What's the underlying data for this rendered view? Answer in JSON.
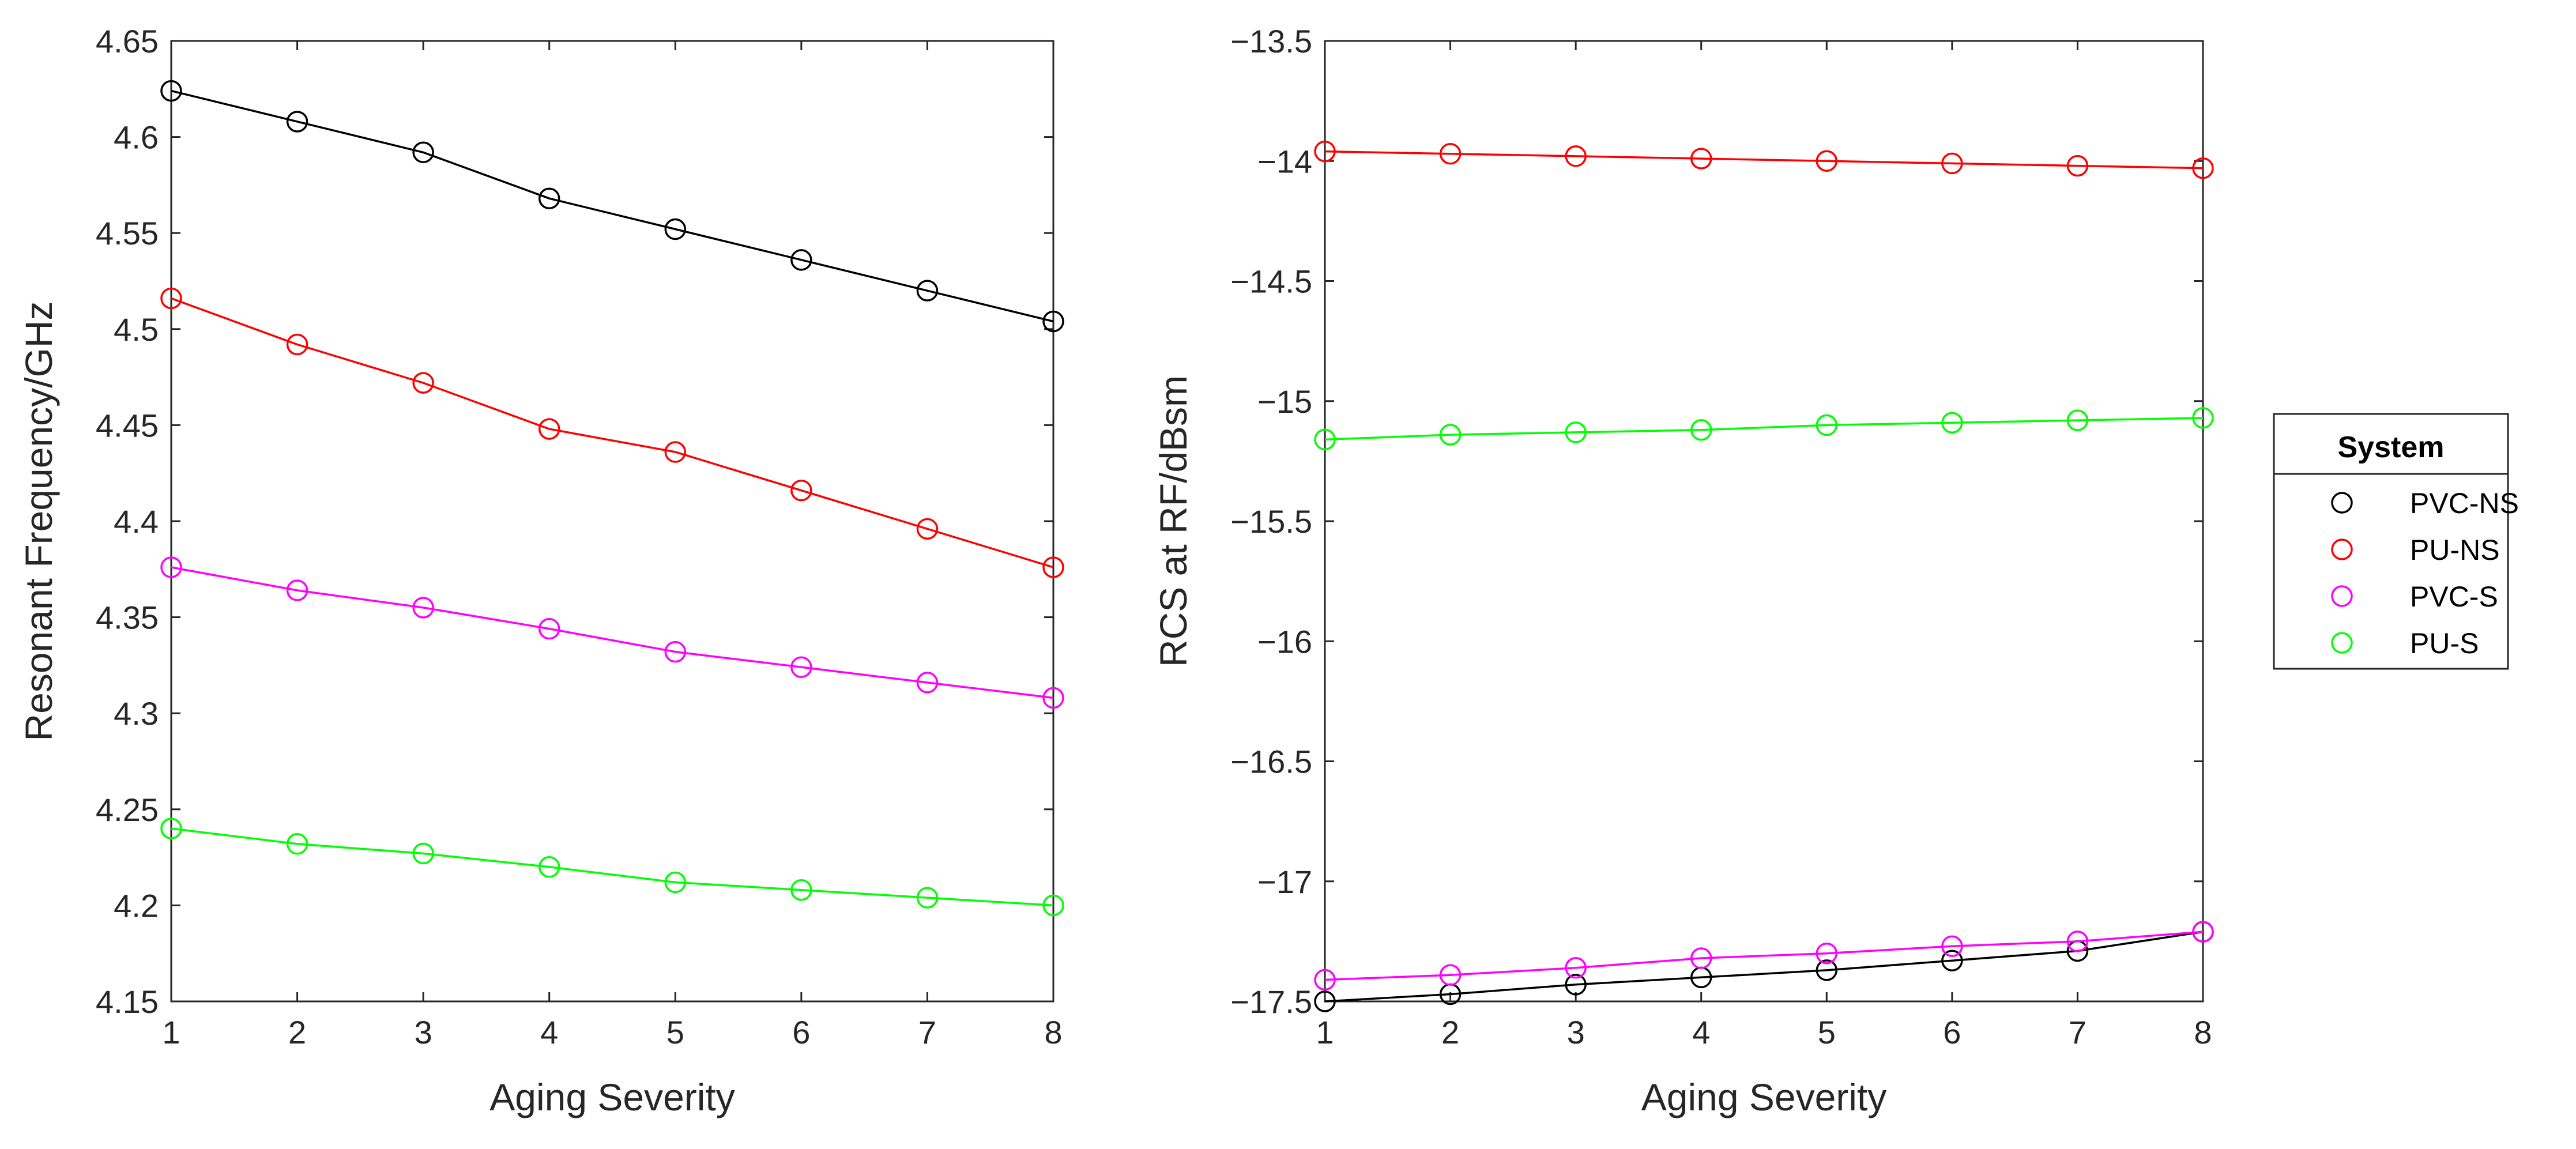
{
  "chart_data": [
    {
      "type": "line",
      "title": "",
      "xlabel": "Aging Severity",
      "ylabel": "Resonant Frequency/GHz",
      "xlim": [
        1,
        8
      ],
      "ylim": [
        4.15,
        4.65
      ],
      "xticks": [
        1,
        2,
        3,
        4,
        5,
        6,
        7,
        8
      ],
      "yticks": [
        4.15,
        4.2,
        4.25,
        4.3,
        4.35,
        4.4,
        4.45,
        4.5,
        4.55,
        4.6,
        4.65
      ],
      "xtick_labels": [
        "1",
        "2",
        "3",
        "4",
        "5",
        "6",
        "7",
        "8"
      ],
      "ytick_labels": [
        "4.15",
        "4.2",
        "4.25",
        "4.3",
        "4.35",
        "4.4",
        "4.45",
        "4.5",
        "4.55",
        "4.6",
        "4.65"
      ],
      "grid": false,
      "x": [
        1,
        2,
        3,
        4,
        5,
        6,
        7,
        8
      ],
      "series": [
        {
          "name": "PVC-NS",
          "color": "#000000",
          "values": [
            4.624,
            4.608,
            4.592,
            4.568,
            4.552,
            4.536,
            4.52,
            4.504
          ]
        },
        {
          "name": "PU-NS",
          "color": "#ff0000",
          "values": [
            4.516,
            4.492,
            4.472,
            4.448,
            4.436,
            4.416,
            4.396,
            4.376
          ]
        },
        {
          "name": "PVC-S",
          "color": "#ff00ff",
          "values": [
            4.376,
            4.364,
            4.355,
            4.344,
            4.332,
            4.324,
            4.316,
            4.308
          ]
        },
        {
          "name": "PU-S",
          "color": "#00ff00",
          "values": [
            4.24,
            4.232,
            4.227,
            4.22,
            4.212,
            4.208,
            4.204,
            4.2
          ]
        }
      ]
    },
    {
      "type": "line",
      "title": "",
      "xlabel": "Aging Severity",
      "ylabel": "RCS at RF/dBsm",
      "xlim": [
        1,
        8
      ],
      "ylim": [
        -17.5,
        -13.5
      ],
      "xticks": [
        1,
        2,
        3,
        4,
        5,
        6,
        7,
        8
      ],
      "yticks": [
        -17.5,
        -17,
        -16.5,
        -16,
        -15.5,
        -15,
        -14.5,
        -14,
        -13.5
      ],
      "xtick_labels": [
        "1",
        "2",
        "3",
        "4",
        "5",
        "6",
        "7",
        "8"
      ],
      "ytick_labels": [
        "−17.5",
        "−17",
        "−16.5",
        "−16",
        "−15.5",
        "−15",
        "−14.5",
        "−14",
        "−13.5"
      ],
      "grid": false,
      "x": [
        1,
        2,
        3,
        4,
        5,
        6,
        7,
        8
      ],
      "series": [
        {
          "name": "PVC-NS",
          "color": "#000000",
          "values": [
            -17.5,
            -17.47,
            -17.43,
            -17.4,
            -17.37,
            -17.33,
            -17.29,
            -17.21
          ]
        },
        {
          "name": "PU-NS",
          "color": "#ff0000",
          "values": [
            -13.96,
            -13.97,
            -13.98,
            -13.99,
            -14.0,
            -14.01,
            -14.02,
            -14.03
          ]
        },
        {
          "name": "PVC-S",
          "color": "#ff00ff",
          "values": [
            -17.41,
            -17.39,
            -17.36,
            -17.32,
            -17.3,
            -17.27,
            -17.25,
            -17.21
          ]
        },
        {
          "name": "PU-S",
          "color": "#00ff00",
          "values": [
            -15.16,
            -15.14,
            -15.13,
            -15.12,
            -15.1,
            -15.09,
            -15.08,
            -15.07
          ]
        }
      ]
    }
  ],
  "legend": {
    "title": "System",
    "placement": "right",
    "entries": [
      "PVC-NS",
      "PU-NS",
      "PVC-S",
      "PU-S"
    ]
  }
}
